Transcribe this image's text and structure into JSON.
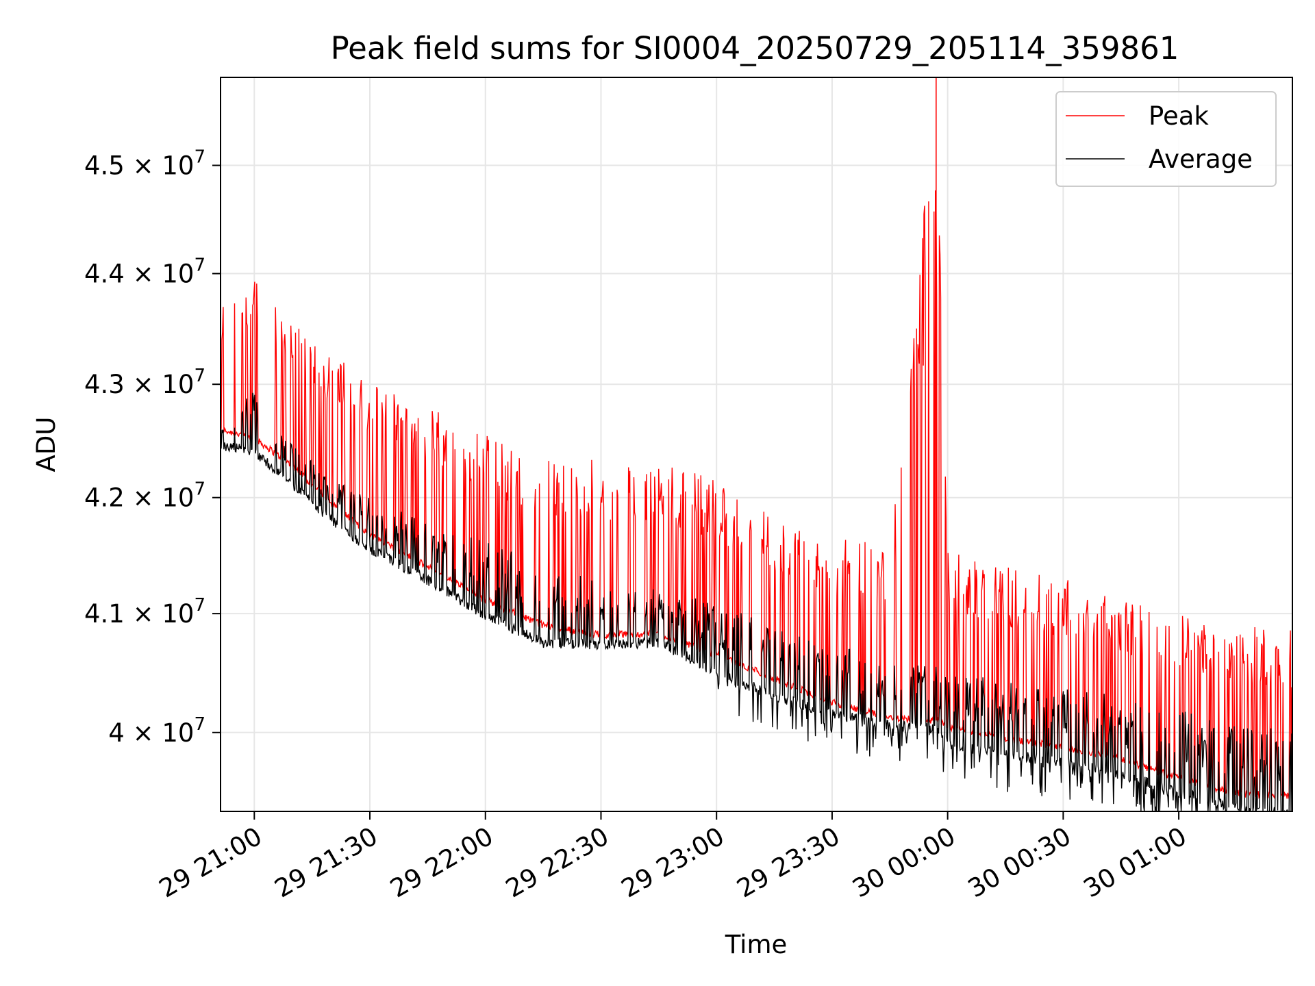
{
  "chart_data": {
    "type": "line",
    "title": "Peak field sums for SI0004_20250729_205114_359861",
    "xlabel": "Time",
    "ylabel": "ADU",
    "x_range": [
      "2025-07-29 20:51:14",
      "2025-07-30 01:29:30"
    ],
    "y_range": [
      39350000,
      45830000
    ],
    "y_scale": "log",
    "grid": true,
    "legend_position": "top-right",
    "x_ticks": [
      {
        "label": "29 21:00",
        "time": "2025-07-29 21:00"
      },
      {
        "label": "29 21:30",
        "time": "2025-07-29 21:30"
      },
      {
        "label": "29 22:00",
        "time": "2025-07-29 22:00"
      },
      {
        "label": "29 22:30",
        "time": "2025-07-29 22:30"
      },
      {
        "label": "29 23:00",
        "time": "2025-07-29 23:00"
      },
      {
        "label": "29 23:30",
        "time": "2025-07-29 23:30"
      },
      {
        "label": "30 00:00",
        "time": "2025-07-30 00:00"
      },
      {
        "label": "30 00:30",
        "time": "2025-07-30 00:30"
      },
      {
        "label": "30 01:00",
        "time": "2025-07-30 01:00"
      }
    ],
    "y_ticks": [
      {
        "mantissa": "4",
        "exponent": "7",
        "value": 40000000
      },
      {
        "mantissa": "4.1",
        "exponent": "7",
        "value": 41000000
      },
      {
        "mantissa": "4.2",
        "exponent": "7",
        "value": 42000000
      },
      {
        "mantissa": "4.3",
        "exponent": "7",
        "value": 43000000
      },
      {
        "mantissa": "4.4",
        "exponent": "7",
        "value": 44000000
      },
      {
        "mantissa": "4.5",
        "exponent": "7",
        "value": 45000000
      }
    ],
    "series": [
      {
        "name": "Peak",
        "color": "#ff0000",
        "points": [
          {
            "time": "2025-07-29 20:51",
            "baseline": 42600000,
            "spike_top": 43750000
          },
          {
            "time": "2025-07-29 21:00",
            "baseline": 42520000,
            "spike_top": 44000000
          },
          {
            "time": "2025-07-29 21:10",
            "baseline": 42280000,
            "spike_top": 43550000
          },
          {
            "time": "2025-07-29 21:20",
            "baseline": 41950000,
            "spike_top": 43300000
          },
          {
            "time": "2025-07-29 21:30",
            "baseline": 41680000,
            "spike_top": 43000000
          },
          {
            "time": "2025-07-29 21:45",
            "baseline": 41400000,
            "spike_top": 42800000
          },
          {
            "time": "2025-07-29 22:00",
            "baseline": 41120000,
            "spike_top": 42550000
          },
          {
            "time": "2025-07-29 22:15",
            "baseline": 40900000,
            "spike_top": 42330000
          },
          {
            "time": "2025-07-29 22:30",
            "baseline": 40820000,
            "spike_top": 42330000
          },
          {
            "time": "2025-07-29 22:45",
            "baseline": 40830000,
            "spike_top": 42320000
          },
          {
            "time": "2025-07-29 23:00",
            "baseline": 40650000,
            "spike_top": 42150000
          },
          {
            "time": "2025-07-29 23:15",
            "baseline": 40450000,
            "spike_top": 41850000
          },
          {
            "time": "2025-07-29 23:30",
            "baseline": 40250000,
            "spike_top": 41650000
          },
          {
            "time": "2025-07-29 23:45",
            "baseline": 40120000,
            "spike_top": 41600000
          },
          {
            "time": "2025-07-29 23:57",
            "baseline": 40100000,
            "spike_top": 45830000
          },
          {
            "time": "2025-07-30 00:00",
            "baseline": 40050000,
            "spike_top": 41550000
          },
          {
            "time": "2025-07-30 00:15",
            "baseline": 39950000,
            "spike_top": 41400000
          },
          {
            "time": "2025-07-30 00:30",
            "baseline": 39880000,
            "spike_top": 41300000
          },
          {
            "time": "2025-07-30 00:45",
            "baseline": 39780000,
            "spike_top": 41150000
          },
          {
            "time": "2025-07-30 01:00",
            "baseline": 39620000,
            "spike_top": 41000000
          },
          {
            "time": "2025-07-30 01:15",
            "baseline": 39500000,
            "spike_top": 40900000
          },
          {
            "time": "2025-07-30 01:29",
            "baseline": 39480000,
            "spike_top": 40860000
          }
        ]
      },
      {
        "name": "Average",
        "color": "#000000",
        "points": [
          {
            "time": "2025-07-29 20:51",
            "baseline": 42500000,
            "spike_top": 42600000
          },
          {
            "time": "2025-07-29 21:00",
            "baseline": 42450000,
            "spike_top": 42950000
          },
          {
            "time": "2025-07-29 21:10",
            "baseline": 42150000,
            "spike_top": 42450000
          },
          {
            "time": "2025-07-29 21:20",
            "baseline": 41850000,
            "spike_top": 42200000
          },
          {
            "time": "2025-07-29 21:30",
            "baseline": 41600000,
            "spike_top": 42000000
          },
          {
            "time": "2025-07-29 21:45",
            "baseline": 41330000,
            "spike_top": 41800000
          },
          {
            "time": "2025-07-29 22:00",
            "baseline": 41030000,
            "spike_top": 41650000
          },
          {
            "time": "2025-07-29 22:15",
            "baseline": 40800000,
            "spike_top": 41400000
          },
          {
            "time": "2025-07-29 22:30",
            "baseline": 40780000,
            "spike_top": 41300000
          },
          {
            "time": "2025-07-29 22:45",
            "baseline": 40800000,
            "spike_top": 41200000
          },
          {
            "time": "2025-07-29 23:00",
            "baseline": 40550000,
            "spike_top": 41100000
          },
          {
            "time": "2025-07-29 23:15",
            "baseline": 40350000,
            "spike_top": 40900000
          },
          {
            "time": "2025-07-29 23:30",
            "baseline": 40200000,
            "spike_top": 40750000
          },
          {
            "time": "2025-07-29 23:45",
            "baseline": 40100000,
            "spike_top": 40600000
          },
          {
            "time": "2025-07-29 23:57",
            "baseline": 40080000,
            "spike_top": 40550000
          },
          {
            "time": "2025-07-30 00:00",
            "baseline": 39950000,
            "spike_top": 40500000
          },
          {
            "time": "2025-07-30 00:15",
            "baseline": 39860000,
            "spike_top": 40450000
          },
          {
            "time": "2025-07-30 00:30",
            "baseline": 39800000,
            "spike_top": 40400000
          },
          {
            "time": "2025-07-30 00:45",
            "baseline": 39700000,
            "spike_top": 40300000
          },
          {
            "time": "2025-07-30 01:00",
            "baseline": 39550000,
            "spike_top": 40200000
          },
          {
            "time": "2025-07-30 01:15",
            "baseline": 39420000,
            "spike_top": 40100000
          },
          {
            "time": "2025-07-30 01:29",
            "baseline": 39370000,
            "spike_top": 40000000
          }
        ]
      }
    ]
  }
}
